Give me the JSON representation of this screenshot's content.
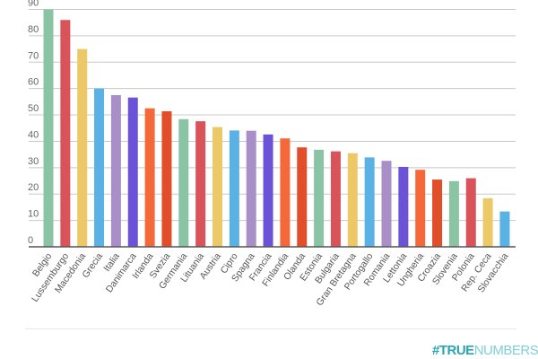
{
  "chart_data": {
    "type": "bar",
    "title": "",
    "xlabel": "",
    "ylabel": "",
    "ylim": [
      0,
      90
    ],
    "yticks": [
      0,
      10,
      20,
      30,
      40,
      50,
      60,
      70,
      80,
      90
    ],
    "grid": true,
    "legend": "none",
    "categories": [
      "Belgio",
      "Lussemburgo",
      "Macedonia",
      "Grecia",
      "Italia",
      "Danimarca",
      "Irlanda",
      "Svezia",
      "Germania",
      "Lituania",
      "Austria",
      "Cipro",
      "Spagna",
      "Francia",
      "Finlandia",
      "Olanda",
      "Estonia",
      "Bulgaria",
      "Gran Bretagna",
      "Portogallo",
      "Romania",
      "Lettonia",
      "Ungheria",
      "Croazia",
      "Slovenia",
      "Polonia",
      "Rep. Ceca",
      "Slovacchia"
    ],
    "values": [
      90,
      86,
      75,
      60,
      57.5,
      56.6,
      52.5,
      51.4,
      48.4,
      47.6,
      45.4,
      44.1,
      44,
      42.6,
      41.1,
      37.7,
      36.8,
      36.2,
      35.5,
      33.9,
      32.6,
      30.3,
      29.2,
      25.5,
      24.9,
      26,
      18.4,
      13.4
    ],
    "colors": [
      "#8bc3a5",
      "#d9535a",
      "#ecc867",
      "#5ab1e3",
      "#a98fc8",
      "#6b52d6",
      "#f5683a",
      "#e04e2a"
    ]
  },
  "footer": {
    "brand_bold": "#TRUE",
    "brand_light": "NUMBERS",
    "brand_color": "#2aa6b0"
  }
}
